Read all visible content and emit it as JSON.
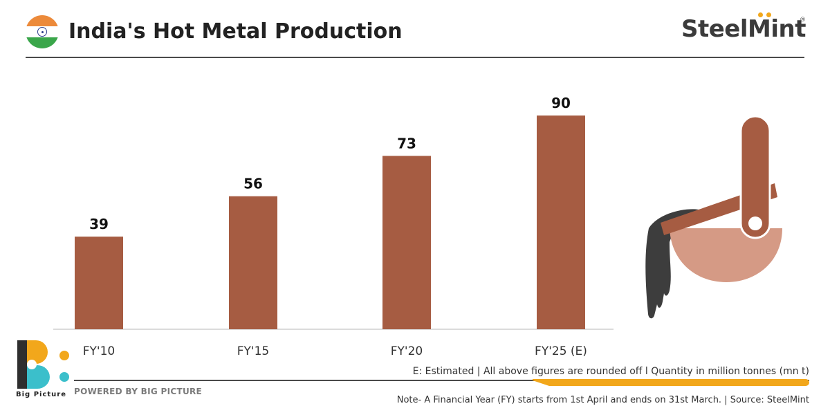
{
  "header": {
    "title": "India's Hot Metal Production",
    "brand": "SteelMint",
    "brand_mark": "®"
  },
  "colors": {
    "bar": "#a65c42",
    "accent": "#f2a71b",
    "text": "#222222"
  },
  "chart_data": {
    "type": "bar",
    "title": "India's Hot Metal Production",
    "categories": [
      "FY'10",
      "FY'15",
      "FY'20",
      "FY'25 (E)"
    ],
    "values": [
      39,
      56,
      73,
      90
    ],
    "xlabel": "",
    "ylabel": "",
    "ylim": [
      0,
      90
    ],
    "grid": false,
    "legend": "none"
  },
  "footer": {
    "note_units": "E: Estimated  |  All above figures are rounded off  l  Quantity in million tonnes (mn t)",
    "powered_by": "POWERED BY BIG PICTURE",
    "note_fy": "Note- A Financial Year (FY) starts from 1st April and ends on 31st March.  |  Source: SteelMint",
    "bp_logo_text": "Big Picture"
  },
  "icons": {
    "flag": "india-flag-icon",
    "ladle": "ladle-pouring-icon",
    "logo": "big-picture-logo-icon"
  }
}
